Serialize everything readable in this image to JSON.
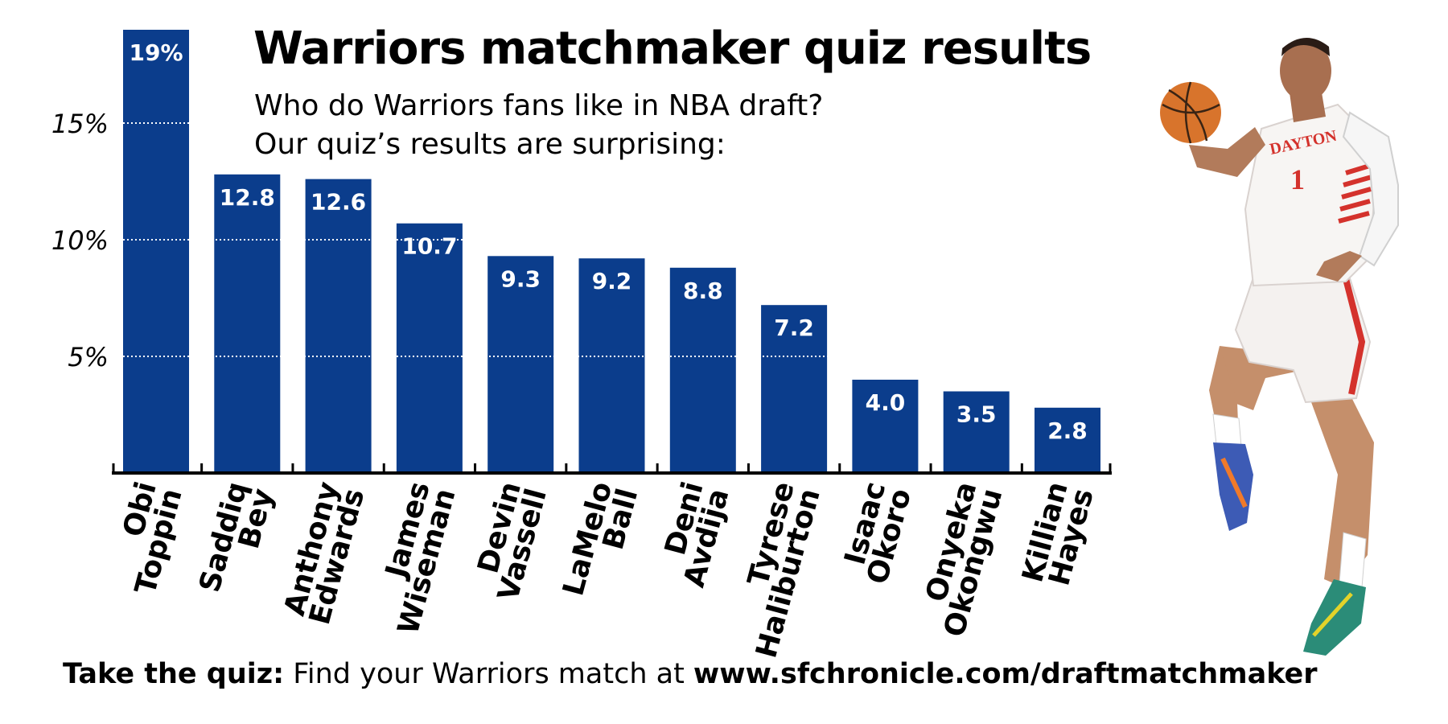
{
  "title": "Warriors matchmaker quiz results",
  "subtitle": [
    "Who do Warriors fans like in NBA draft?",
    "Our quiz’s results are surprising:"
  ],
  "footer": {
    "lead": "Take the quiz:",
    "text": " Find your Warriors match at ",
    "url": "www.sfchronicle.com/draftmatchmaker"
  },
  "colors": {
    "bar": "#0b3d8c",
    "bar_label": "#ffffff",
    "axis": "#000000"
  },
  "chart_data": {
    "type": "bar",
    "categories": [
      [
        "Obi",
        "Toppin"
      ],
      [
        "Saddiq",
        "Bey"
      ],
      [
        "Anthony",
        "Edwards"
      ],
      [
        "James",
        "Wiseman"
      ],
      [
        "Devin",
        "Vassell"
      ],
      [
        "LaMelo",
        "Ball"
      ],
      [
        "Deni",
        "Avdija"
      ],
      [
        "Tyrese",
        "Haliburton"
      ],
      [
        "Isaac",
        "Okoro"
      ],
      [
        "Onyeka",
        "Okongwu"
      ],
      [
        "Killian",
        "Hayes"
      ]
    ],
    "values": [
      19,
      12.8,
      12.6,
      10.7,
      9.3,
      9.2,
      8.8,
      7.2,
      4.0,
      3.5,
      2.8
    ],
    "value_labels": [
      "19%",
      "12.8",
      "12.6",
      "10.7",
      "9.3",
      "9.2",
      "8.8",
      "7.2",
      "4.0",
      "3.5",
      "2.8"
    ],
    "yticks": [
      5,
      10,
      15
    ],
    "ytick_labels": [
      "5%",
      "10%",
      "15%"
    ],
    "ylim": [
      0,
      19
    ],
    "grid": "dotted white lines across bars at ticks",
    "legend": "none"
  },
  "photo": {
    "subject": "basketball-player-dunking",
    "jersey_text": "DAYTON",
    "jersey_number": "1"
  }
}
